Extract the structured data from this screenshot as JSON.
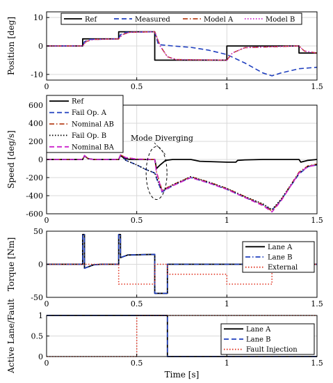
{
  "chart_data": [
    {
      "type": "line",
      "ylabel": "Position [deg]",
      "xlim": [
        0,
        1.5
      ],
      "ylim": [
        -12,
        12
      ],
      "xticks": [
        "0",
        "0.5",
        "1",
        "1.5"
      ],
      "yticks": [
        "10",
        "0",
        "-10"
      ],
      "grid": true,
      "legend_position": "top",
      "series": [
        {
          "name": "Ref",
          "color": "#000000",
          "style": "solid",
          "points": [
            [
              0,
              0
            ],
            [
              0.2,
              0
            ],
            [
              0.2,
              2.5
            ],
            [
              0.4,
              2.5
            ],
            [
              0.4,
              5
            ],
            [
              0.6,
              5
            ],
            [
              0.6,
              -5
            ],
            [
              1.0,
              -5
            ],
            [
              1.0,
              0
            ],
            [
              1.4,
              0
            ],
            [
              1.4,
              -2.5
            ],
            [
              1.5,
              -2.5
            ]
          ]
        },
        {
          "name": "Measured",
          "color": "#1f3fbf",
          "style": "dashed",
          "points": [
            [
              0,
              0
            ],
            [
              0.2,
              0
            ],
            [
              0.21,
              1.5
            ],
            [
              0.24,
              2.3
            ],
            [
              0.4,
              2.5
            ],
            [
              0.41,
              4
            ],
            [
              0.44,
              4.8
            ],
            [
              0.6,
              5
            ],
            [
              0.62,
              0.5
            ],
            [
              0.7,
              0
            ],
            [
              0.8,
              -0.5
            ],
            [
              0.9,
              -1.5
            ],
            [
              1.0,
              -3
            ],
            [
              1.1,
              -6
            ],
            [
              1.2,
              -9.5
            ],
            [
              1.25,
              -10.5
            ],
            [
              1.3,
              -9.5
            ],
            [
              1.4,
              -8
            ],
            [
              1.5,
              -7.5
            ]
          ]
        },
        {
          "name": "Model A",
          "color": "#b8421b",
          "style": "dashdot",
          "points": [
            [
              0,
              0
            ],
            [
              0.2,
              0
            ],
            [
              0.22,
              1.6
            ],
            [
              0.26,
              2.3
            ],
            [
              0.4,
              2.5
            ],
            [
              0.42,
              4
            ],
            [
              0.46,
              4.8
            ],
            [
              0.6,
              5
            ],
            [
              0.63,
              0
            ],
            [
              0.67,
              -3.8
            ],
            [
              0.72,
              -4.8
            ],
            [
              1.0,
              -5
            ],
            [
              1.03,
              -2.5
            ],
            [
              1.1,
              -0.6
            ],
            [
              1.4,
              0
            ],
            [
              1.43,
              -1.8
            ],
            [
              1.5,
              -2.5
            ]
          ]
        },
        {
          "name": "Model B",
          "color": "#cc22cc",
          "style": "dotted",
          "points": [
            [
              0,
              0
            ],
            [
              0.2,
              0
            ],
            [
              0.22,
              1.6
            ],
            [
              0.26,
              2.3
            ],
            [
              0.4,
              2.5
            ],
            [
              0.42,
              4
            ],
            [
              0.46,
              4.8
            ],
            [
              0.6,
              5
            ],
            [
              0.63,
              0
            ],
            [
              0.67,
              -3.8
            ],
            [
              0.72,
              -4.8
            ],
            [
              1.0,
              -5
            ],
            [
              1.03,
              -2.5
            ],
            [
              1.1,
              -0.6
            ],
            [
              1.4,
              0
            ],
            [
              1.43,
              -1.8
            ],
            [
              1.5,
              -2.5
            ]
          ]
        }
      ]
    },
    {
      "type": "line",
      "ylabel": "Speed [deg/s]",
      "xlim": [
        0,
        1.5
      ],
      "ylim": [
        -600,
        600
      ],
      "xticks": [
        "0",
        "0.5",
        "1",
        "1.5"
      ],
      "yticks": [
        "600",
        "400",
        "200",
        "0",
        "-200",
        "-400",
        "-600"
      ],
      "grid": true,
      "legend_position": "top-left",
      "annotation": "Mode Diverging",
      "series": [
        {
          "name": "Ref",
          "color": "#000000",
          "style": "solid",
          "points": [
            [
              0,
              0
            ],
            [
              0.2,
              0
            ],
            [
              0.21,
              40
            ],
            [
              0.23,
              10
            ],
            [
              0.26,
              0
            ],
            [
              0.4,
              0
            ],
            [
              0.41,
              45
            ],
            [
              0.43,
              15
            ],
            [
              0.46,
              0
            ],
            [
              0.6,
              0
            ],
            [
              0.61,
              -100
            ],
            [
              0.63,
              -60
            ],
            [
              0.66,
              -10
            ],
            [
              0.7,
              0
            ],
            [
              0.8,
              0
            ],
            [
              0.85,
              -20
            ],
            [
              1.0,
              -30
            ],
            [
              1.05,
              -30
            ],
            [
              1.06,
              -10
            ],
            [
              1.1,
              -5
            ],
            [
              1.2,
              0
            ],
            [
              1.4,
              0
            ],
            [
              1.41,
              -30
            ],
            [
              1.45,
              -10
            ],
            [
              1.5,
              0
            ]
          ]
        },
        {
          "name": "Fail Op. A",
          "color": "#1f3fbf",
          "style": "dashed",
          "points": [
            [
              0,
              0
            ],
            [
              0.2,
              0
            ],
            [
              0.21,
              40
            ],
            [
              0.23,
              10
            ],
            [
              0.26,
              0
            ],
            [
              0.4,
              0
            ],
            [
              0.41,
              45
            ],
            [
              0.43,
              10
            ],
            [
              0.44,
              -10
            ],
            [
              0.5,
              -60
            ],
            [
              0.55,
              -110
            ],
            [
              0.6,
              -150
            ],
            [
              0.61,
              -210
            ],
            [
              0.64,
              -360
            ],
            [
              0.7,
              -290
            ],
            [
              0.8,
              -200
            ],
            [
              0.9,
              -260
            ],
            [
              1.0,
              -330
            ],
            [
              1.1,
              -420
            ],
            [
              1.2,
              -500
            ],
            [
              1.25,
              -560
            ],
            [
              1.3,
              -450
            ],
            [
              1.4,
              -160
            ],
            [
              1.45,
              -80
            ],
            [
              1.5,
              -60
            ]
          ]
        },
        {
          "name": "Nominal AB",
          "color": "#b8421b",
          "style": "dashdot",
          "points": [
            [
              0,
              0
            ],
            [
              0.2,
              0
            ],
            [
              0.21,
              45
            ],
            [
              0.23,
              10
            ],
            [
              0.26,
              0
            ],
            [
              0.4,
              0
            ],
            [
              0.41,
              50
            ],
            [
              0.44,
              20
            ],
            [
              0.5,
              5
            ],
            [
              0.6,
              0
            ],
            [
              0.61,
              -140
            ],
            [
              0.64,
              -340
            ],
            [
              0.7,
              -280
            ],
            [
              0.8,
              -190
            ],
            [
              0.9,
              -250
            ],
            [
              1.0,
              -320
            ],
            [
              1.1,
              -410
            ],
            [
              1.2,
              -500
            ],
            [
              1.25,
              -570
            ],
            [
              1.3,
              -450
            ],
            [
              1.4,
              -140
            ],
            [
              1.45,
              -70
            ],
            [
              1.5,
              -50
            ]
          ]
        },
        {
          "name": "Fail Op. B",
          "color": "#000000",
          "style": "dotted",
          "points": [
            [
              0,
              0
            ],
            [
              0.2,
              0
            ],
            [
              0.21,
              40
            ],
            [
              0.23,
              10
            ],
            [
              0.26,
              0
            ],
            [
              0.4,
              0
            ],
            [
              0.41,
              45
            ],
            [
              0.43,
              10
            ],
            [
              0.44,
              -10
            ],
            [
              0.5,
              -60
            ],
            [
              0.55,
              -110
            ],
            [
              0.6,
              -150
            ],
            [
              0.61,
              -200
            ],
            [
              0.64,
              -350
            ],
            [
              0.7,
              -280
            ],
            [
              0.8,
              -190
            ],
            [
              0.9,
              -250
            ],
            [
              1.0,
              -320
            ],
            [
              1.1,
              -410
            ],
            [
              1.2,
              -490
            ],
            [
              1.25,
              -555
            ],
            [
              1.3,
              -440
            ],
            [
              1.4,
              -150
            ],
            [
              1.45,
              -75
            ],
            [
              1.5,
              -55
            ]
          ]
        },
        {
          "name": "Nominal BA",
          "color": "#cc22cc",
          "style": "dashed",
          "points": [
            [
              0,
              0
            ],
            [
              0.2,
              0
            ],
            [
              0.21,
              45
            ],
            [
              0.23,
              10
            ],
            [
              0.26,
              0
            ],
            [
              0.4,
              0
            ],
            [
              0.41,
              50
            ],
            [
              0.44,
              20
            ],
            [
              0.5,
              5
            ],
            [
              0.6,
              0
            ],
            [
              0.61,
              -150
            ],
            [
              0.64,
              -350
            ],
            [
              0.7,
              -290
            ],
            [
              0.8,
              -200
            ],
            [
              0.9,
              -260
            ],
            [
              1.0,
              -330
            ],
            [
              1.1,
              -420
            ],
            [
              1.2,
              -510
            ],
            [
              1.25,
              -580
            ],
            [
              1.3,
              -460
            ],
            [
              1.4,
              -150
            ],
            [
              1.45,
              -80
            ],
            [
              1.5,
              -60
            ]
          ]
        }
      ]
    },
    {
      "type": "line",
      "ylabel": "Torque [Nm]",
      "xlim": [
        0,
        1.5
      ],
      "ylim": [
        -50,
        50
      ],
      "xticks": [
        "0",
        "0.5",
        "1",
        "1.5"
      ],
      "yticks": [
        "50",
        "0",
        "-50"
      ],
      "grid": true,
      "legend_position": "right",
      "series": [
        {
          "name": "Lane A",
          "color": "#000000",
          "style": "solid",
          "points": [
            [
              0,
              0
            ],
            [
              0.2,
              0
            ],
            [
              0.2,
              45
            ],
            [
              0.21,
              45
            ],
            [
              0.21,
              -6
            ],
            [
              0.26,
              -1
            ],
            [
              0.3,
              0
            ],
            [
              0.4,
              0
            ],
            [
              0.4,
              45
            ],
            [
              0.41,
              45
            ],
            [
              0.41,
              10
            ],
            [
              0.45,
              14
            ],
            [
              0.6,
              15
            ],
            [
              0.6,
              -44
            ],
            [
              0.67,
              -44
            ],
            [
              0.67,
              0
            ],
            [
              1.5,
              0
            ]
          ]
        },
        {
          "name": "Lane B",
          "color": "#1f3fbf",
          "style": "dashdot",
          "points": [
            [
              0,
              0
            ],
            [
              0.2,
              0
            ],
            [
              0.2,
              45
            ],
            [
              0.21,
              45
            ],
            [
              0.21,
              -6
            ],
            [
              0.26,
              -1
            ],
            [
              0.3,
              0
            ],
            [
              0.4,
              0
            ],
            [
              0.4,
              45
            ],
            [
              0.41,
              45
            ],
            [
              0.41,
              10
            ],
            [
              0.45,
              14
            ],
            [
              0.6,
              15
            ],
            [
              0.6,
              -44
            ],
            [
              0.67,
              -44
            ],
            [
              0.67,
              0
            ],
            [
              1.5,
              0
            ]
          ]
        },
        {
          "name": "External",
          "color": "#e0301e",
          "style": "dotted",
          "points": [
            [
              0,
              0
            ],
            [
              0.4,
              0
            ],
            [
              0.4,
              -30
            ],
            [
              0.6,
              -30
            ],
            [
              0.6,
              0
            ],
            [
              0.67,
              0
            ],
            [
              0.67,
              -15
            ],
            [
              1.0,
              -15
            ],
            [
              1.0,
              -30
            ],
            [
              1.25,
              -30
            ],
            [
              1.25,
              0
            ],
            [
              1.5,
              0
            ]
          ]
        }
      ]
    },
    {
      "type": "line",
      "ylabel": "Active Lane/Fault",
      "xlabel": "Time [s]",
      "xlim": [
        0,
        1.5
      ],
      "ylim": [
        0,
        1
      ],
      "xticks": [
        "0",
        "0.5",
        "1",
        "1.5"
      ],
      "yticks": [
        "1",
        "0.5",
        "0"
      ],
      "grid": true,
      "legend_position": "bottom-right",
      "series": [
        {
          "name": "Lane A",
          "color": "#000000",
          "style": "solid",
          "points": [
            [
              0,
              1
            ],
            [
              0.67,
              1
            ],
            [
              0.67,
              0
            ],
            [
              1.5,
              0
            ]
          ]
        },
        {
          "name": "Lane B",
          "color": "#1f3fbf",
          "style": "dashed",
          "points": [
            [
              0,
              1
            ],
            [
              0.67,
              1
            ],
            [
              0.67,
              0
            ],
            [
              1.5,
              0
            ]
          ]
        },
        {
          "name": "Fault Injection",
          "color": "#e0301e",
          "style": "dotted",
          "points": [
            [
              0,
              0
            ],
            [
              0.5,
              0
            ],
            [
              0.5,
              1
            ],
            [
              1.5,
              1
            ]
          ]
        }
      ]
    }
  ]
}
